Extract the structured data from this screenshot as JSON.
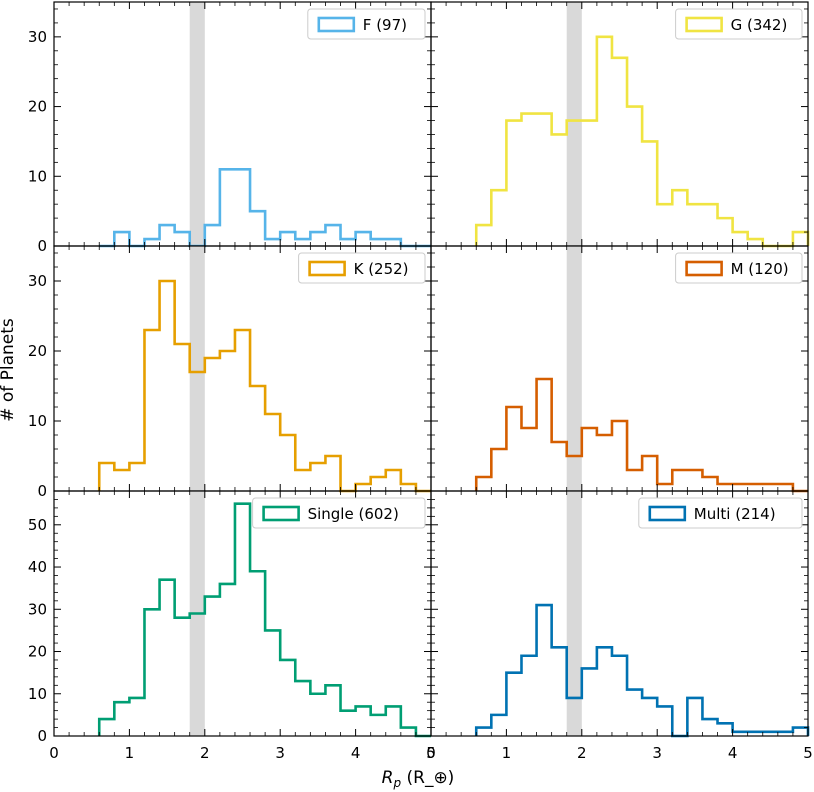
{
  "chart_data": {
    "type": "histogram-grid",
    "xlabel": "R_p (R_⊕)",
    "ylabel": "# of Planets",
    "xlim": [
      0,
      5
    ],
    "x_ticks": [
      0,
      1,
      2,
      3,
      4,
      5
    ],
    "bin_edges": [
      0.6,
      0.8,
      1.0,
      1.2,
      1.4,
      1.6,
      1.8,
      2.0,
      2.2,
      2.4,
      2.6,
      2.8,
      3.0,
      3.2,
      3.4,
      3.6,
      3.8,
      4.0,
      4.2,
      4.4,
      4.6,
      4.8,
      5.0
    ],
    "gap_band": [
      1.8,
      2.0
    ],
    "gap_color": "#d9d9d9",
    "panels": [
      {
        "label": "F (97)",
        "color": "#56b4e9",
        "ylim": [
          0,
          35
        ],
        "y_ticks": [
          0,
          10,
          20,
          30
        ],
        "counts": [
          0,
          2,
          0,
          1,
          3,
          2,
          0,
          3,
          11,
          11,
          5,
          1,
          2,
          1,
          2,
          3,
          1,
          2,
          1,
          1,
          0,
          0
        ]
      },
      {
        "label": "G (342)",
        "color": "#f0e442",
        "ylim": [
          0,
          35
        ],
        "y_ticks": [
          0,
          10,
          20,
          30
        ],
        "counts": [
          3,
          8,
          18,
          19,
          19,
          16,
          18,
          18,
          30,
          27,
          20,
          15,
          6,
          8,
          6,
          6,
          4,
          2,
          1,
          0,
          0,
          2
        ]
      },
      {
        "label": "K (252)",
        "color": "#e69f00",
        "ylim": [
          0,
          35
        ],
        "y_ticks": [
          0,
          10,
          20,
          30
        ],
        "counts": [
          4,
          3,
          4,
          23,
          30,
          21,
          17,
          19,
          20,
          23,
          15,
          11,
          8,
          3,
          4,
          5,
          0,
          1,
          2,
          3,
          1,
          0
        ]
      },
      {
        "label": "M (120)",
        "color": "#d55e00",
        "ylim": [
          0,
          35
        ],
        "y_ticks": [
          0,
          10,
          20,
          30
        ],
        "counts": [
          2,
          6,
          12,
          9,
          16,
          7,
          5,
          9,
          8,
          10,
          3,
          5,
          1,
          3,
          3,
          2,
          1,
          1,
          1,
          1,
          1,
          0
        ]
      },
      {
        "label": "Single (602)",
        "color": "#009e73",
        "ylim": [
          0,
          58
        ],
        "y_ticks": [
          0,
          10,
          20,
          30,
          40,
          50
        ],
        "counts": [
          4,
          8,
          9,
          30,
          37,
          28,
          29,
          33,
          36,
          55,
          39,
          25,
          18,
          13,
          10,
          12,
          6,
          7,
          5,
          7,
          2,
          0
        ]
      },
      {
        "label": "Multi (214)",
        "color": "#0072b2",
        "ylim": [
          0,
          58
        ],
        "y_ticks": [
          0,
          10,
          20,
          30,
          40,
          50
        ],
        "counts": [
          2,
          5,
          15,
          19,
          31,
          21,
          9,
          16,
          21,
          19,
          11,
          9,
          7,
          0,
          9,
          4,
          3,
          1,
          1,
          1,
          1,
          2
        ]
      }
    ]
  }
}
